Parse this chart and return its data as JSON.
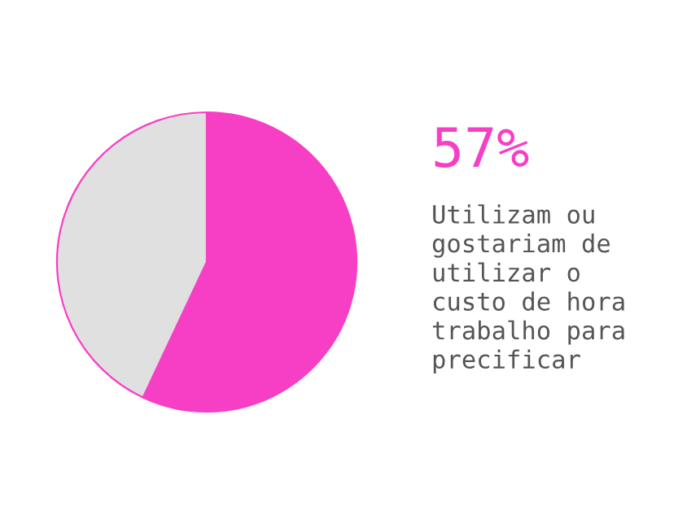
{
  "chart_data": {
    "type": "pie",
    "categories": [
      null,
      null
    ],
    "values": [
      57,
      43
    ],
    "colors": [
      "#f73fc6",
      "#e0e0e0"
    ],
    "value_labels": [
      "57%",
      null
    ],
    "annotations": [
      "Utilizam ou\ngostariam de\nutilizar o\ncusto de hora\ntrabalho para\nprecificar"
    ],
    "legend": false
  }
}
